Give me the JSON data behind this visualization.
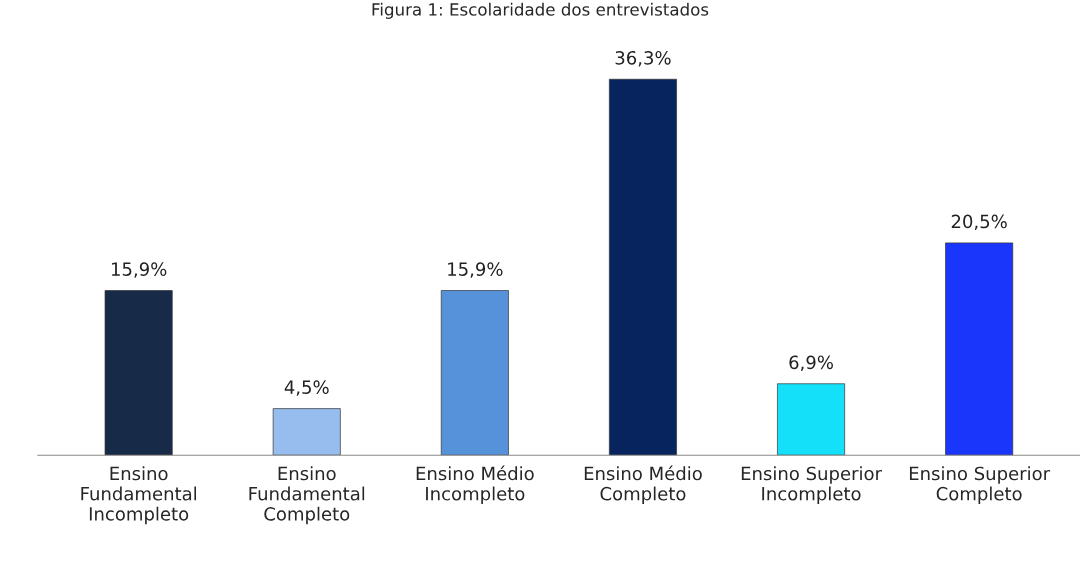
{
  "chart_data": {
    "type": "bar",
    "title": "Figura 1: Escolaridade dos entrevistados",
    "categories": [
      "Ensino\nFundamental\nIncompleto",
      "Ensino\nFundamental\nCompleto",
      "Ensino Médio\nIncompleto",
      "Ensino Médio\nCompleto",
      "Ensino Superior\nIncompleto",
      "Ensino Superior\nCompleto"
    ],
    "values": [
      15.9,
      4.5,
      15.9,
      36.3,
      6.9,
      20.5
    ],
    "value_labels": [
      "15,9%",
      "4,5%",
      "15,9%",
      "36,3%",
      "6,9%",
      "20,5%"
    ],
    "colors": [
      "#172b48",
      "#97bdee",
      "#5592da",
      "#07245f",
      "#14e1f9",
      "#1b36fb"
    ],
    "grid": false,
    "legend": false
  }
}
